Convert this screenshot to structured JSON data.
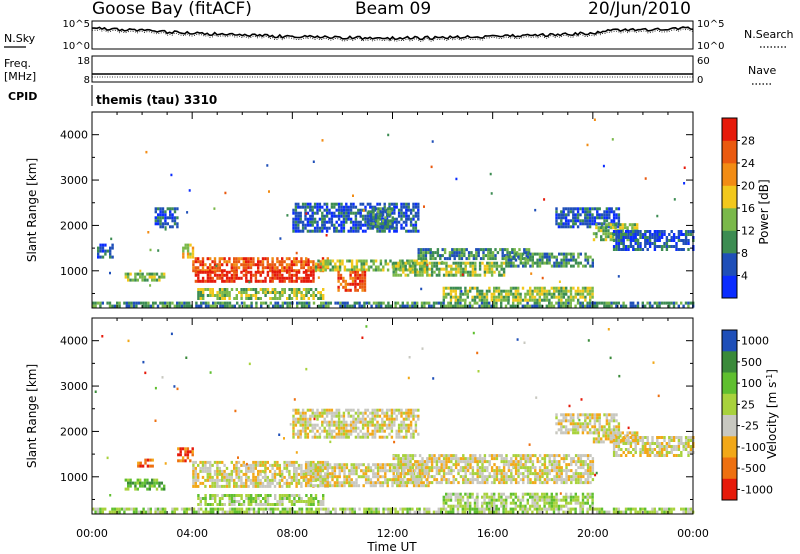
{
  "header": {
    "station": "Goose Bay (fitACF)",
    "beam": "Beam 09",
    "date": "20/Jun/2010"
  },
  "noise_panel": {
    "left_label": "N.Sky",
    "left_ticks": [
      "10^5",
      "10^0"
    ],
    "right_label": "N.Search",
    "right_ticks": [
      "10^5",
      "10^0"
    ]
  },
  "freq_panel": {
    "left_label_line1": "Freq.",
    "left_label_line2": "[MHz]",
    "left_ticks": [
      "18",
      "8"
    ],
    "right_label": "Nave",
    "right_ticks": [
      "60",
      "0"
    ]
  },
  "cpid": {
    "label": "CPID",
    "value": "themis (tau) 3310"
  },
  "chart_data": [
    {
      "type": "heatmap",
      "panel": "power",
      "ylabel": "Slant Range [km]",
      "ylim": [
        180,
        4500
      ],
      "yticks": [
        1000,
        2000,
        3000,
        4000
      ],
      "xlabel": "",
      "xlim": [
        0,
        24
      ],
      "xticks": [
        "00:00",
        "04:00",
        "08:00",
        "12:00",
        "16:00",
        "20:00",
        "00:00"
      ],
      "colorbar": {
        "label": "Power [dB]",
        "ticks": [
          "4",
          "8",
          "12",
          "16",
          "20",
          "24",
          "28"
        ],
        "colors": [
          "#0a2cff",
          "#1f4fb8",
          "#3c8c52",
          "#7ab84a",
          "#f2c81c",
          "#f28c14",
          "#ea5a10",
          "#e61a0a"
        ]
      },
      "regions": [
        {
          "t": [
            0.0,
            24.0
          ],
          "r": [
            200,
            320
          ],
          "level": 2
        },
        {
          "t": [
            0.2,
            0.8
          ],
          "r": [
            1300,
            1600
          ],
          "level": 1
        },
        {
          "t": [
            1.3,
            2.9
          ],
          "r": [
            780,
            960
          ],
          "level": 3
        },
        {
          "t": [
            2.5,
            3.4
          ],
          "r": [
            1950,
            2400
          ],
          "level": 1
        },
        {
          "t": [
            3.6,
            4.0
          ],
          "r": [
            1300,
            1600
          ],
          "level": 4
        },
        {
          "t": [
            4.0,
            9.4
          ],
          "r": [
            1000,
            1300
          ],
          "level": 6
        },
        {
          "t": [
            4.1,
            8.8
          ],
          "r": [
            800,
            1000
          ],
          "level": 7
        },
        {
          "t": [
            4.2,
            9.2
          ],
          "r": [
            380,
            620
          ],
          "level": 3
        },
        {
          "t": [
            8.9,
            13.4
          ],
          "r": [
            1000,
            1250
          ],
          "level": 3
        },
        {
          "t": [
            9.8,
            10.9
          ],
          "r": [
            600,
            1000
          ],
          "level": 6
        },
        {
          "t": [
            8.0,
            13.0
          ],
          "r": [
            1900,
            2500
          ],
          "level": 1
        },
        {
          "t": [
            11.0,
            12.0
          ],
          "r": [
            2000,
            2400
          ],
          "level": 2
        },
        {
          "t": [
            12.0,
            16.5
          ],
          "r": [
            900,
            1200
          ],
          "level": 3
        },
        {
          "t": [
            13.0,
            17.5
          ],
          "r": [
            1250,
            1500
          ],
          "level": 2
        },
        {
          "t": [
            16.5,
            20.0
          ],
          "r": [
            1100,
            1400
          ],
          "level": 2
        },
        {
          "t": [
            18.5,
            21.0
          ],
          "r": [
            2000,
            2400
          ],
          "level": 1
        },
        {
          "t": [
            20.0,
            21.8
          ],
          "r": [
            1700,
            2050
          ],
          "level": 3
        },
        {
          "t": [
            20.8,
            24.0
          ],
          "r": [
            1500,
            1900
          ],
          "level": 1
        },
        {
          "t": [
            14.0,
            20.0
          ],
          "r": [
            380,
            650
          ],
          "level": 3
        }
      ]
    },
    {
      "type": "heatmap",
      "panel": "velocity",
      "ylabel": "Slant Range [km]",
      "ylim": [
        180,
        4500
      ],
      "yticks": [
        1000,
        2000,
        3000,
        4000
      ],
      "xlabel": "Time UT",
      "xlim": [
        0,
        24
      ],
      "xticks": [
        "00:00",
        "04:00",
        "08:00",
        "12:00",
        "16:00",
        "20:00",
        "00:00"
      ],
      "colorbar": {
        "label": "Velocity [m s-1]",
        "label_main": "Velocity [m s",
        "label_sup": "-1",
        "label_end": "]",
        "ticks": [
          "1000",
          "500",
          "100",
          "25",
          "-25",
          "-100",
          "-500",
          "-1000"
        ],
        "colors": [
          "#1f4fb8",
          "#3a8a3a",
          "#5fbf2f",
          "#a8d23c",
          "#c8c8c0",
          "#f2a818",
          "#ee7010",
          "#e61a0a"
        ]
      },
      "regions": [
        {
          "t": [
            0.0,
            24.0
          ],
          "r": [
            200,
            320
          ],
          "level": 3
        },
        {
          "t": [
            1.3,
            2.9
          ],
          "r": [
            760,
            960
          ],
          "level": 2
        },
        {
          "t": [
            1.8,
            2.4
          ],
          "r": [
            1250,
            1400
          ],
          "level": 6
        },
        {
          "t": [
            3.4,
            4.0
          ],
          "r": [
            1350,
            1650
          ],
          "level": 6
        },
        {
          "t": [
            4.0,
            9.4
          ],
          "r": [
            800,
            1350
          ],
          "level": 4
        },
        {
          "t": [
            4.2,
            9.2
          ],
          "r": [
            380,
            620
          ],
          "level": 3
        },
        {
          "t": [
            8.5,
            13.4
          ],
          "r": [
            800,
            1300
          ],
          "level": 4
        },
        {
          "t": [
            8.0,
            13.0
          ],
          "r": [
            1900,
            2500
          ],
          "level": 4
        },
        {
          "t": [
            12.0,
            20.0
          ],
          "r": [
            900,
            1500
          ],
          "level": 4
        },
        {
          "t": [
            18.5,
            21.0
          ],
          "r": [
            2000,
            2400
          ],
          "level": 4
        },
        {
          "t": [
            20.0,
            21.8
          ],
          "r": [
            1750,
            2000
          ],
          "level": 4
        },
        {
          "t": [
            20.8,
            24.0
          ],
          "r": [
            1500,
            1900
          ],
          "level": 4
        },
        {
          "t": [
            14.0,
            20.0
          ],
          "r": [
            380,
            650
          ],
          "level": 3
        }
      ]
    }
  ]
}
